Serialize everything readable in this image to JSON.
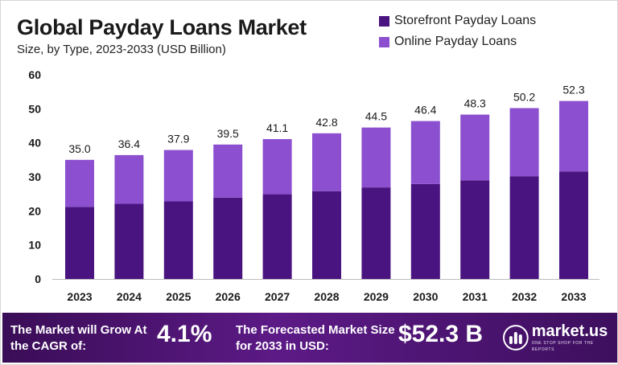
{
  "header": {
    "title": "Global Payday Loans Market",
    "subtitle": "Size, by Type, 2023-2033 (USD Billion)"
  },
  "legend": {
    "items": [
      {
        "label": "Storefront Payday Loans",
        "color": "#4a1480"
      },
      {
        "label": "Online Payday Loans",
        "color": "#8b4fcf"
      }
    ]
  },
  "chart_data": {
    "type": "bar",
    "stacked": true,
    "categories": [
      "2023",
      "2024",
      "2025",
      "2026",
      "2027",
      "2028",
      "2029",
      "2030",
      "2031",
      "2032",
      "2033"
    ],
    "series": [
      {
        "name": "Storefront Payday Loans",
        "values": [
          21.2,
          22.1,
          22.8,
          23.9,
          24.9,
          25.8,
          26.9,
          27.9,
          29.0,
          30.2,
          31.6
        ],
        "color": "#4a1480"
      },
      {
        "name": "Online Payday Loans",
        "values": [
          13.8,
          14.3,
          15.1,
          15.6,
          16.2,
          17.0,
          17.6,
          18.5,
          19.3,
          20.0,
          20.7
        ],
        "color": "#8b4fcf"
      }
    ],
    "totals": [
      "35.0",
      "36.4",
      "37.9",
      "39.5",
      "41.1",
      "42.8",
      "44.5",
      "46.4",
      "48.3",
      "50.2",
      "52.3"
    ],
    "yticks": [
      0,
      10,
      20,
      30,
      40,
      50,
      60
    ],
    "ylim": [
      0,
      60
    ],
    "grid": false,
    "legend_position": "top-right"
  },
  "banner": {
    "cagr_label": "The Market will Grow At the CAGR of:",
    "cagr_value": "4.1%",
    "forecast_label": "The Forecasted Market Size for 2033 in USD:",
    "forecast_value": "$52.3 B",
    "logo_text": "market.us",
    "logo_tagline": "ONE STOP SHOP FOR THE REPORTS"
  }
}
